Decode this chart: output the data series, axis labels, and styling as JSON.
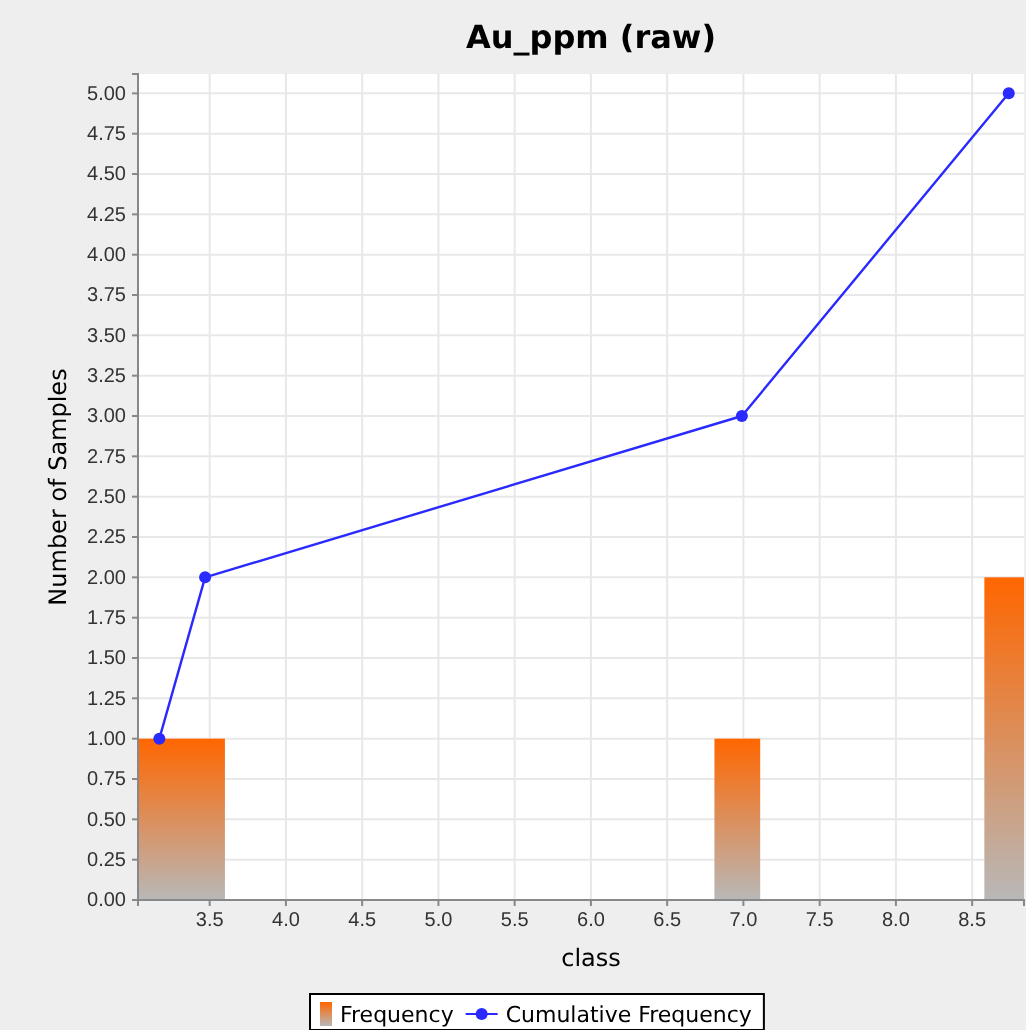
{
  "chart_data": {
    "type": "histogram",
    "title": "Au_ppm (raw)",
    "xlabel": "class",
    "ylabel": "Number of Samples",
    "bins": [
      3.03,
      3.6,
      6.81,
      7.11,
      8.58,
      8.84
    ],
    "series": [
      {
        "name": "Frequency",
        "color": "#ff6600",
        "values": [
          1,
          0,
          1,
          0,
          2
        ]
      },
      {
        "name": "Cumulative Frequency",
        "type": "line",
        "color": "#2a2aff",
        "x": [
          3.17,
          3.47,
          6.99,
          8.74
        ],
        "values": [
          1,
          2,
          3,
          5
        ]
      }
    ],
    "xlim": [
      3.03,
      8.84
    ],
    "xticks": [
      3.5,
      {
        "value": 4,
        "label": "4.0"
      },
      4.5,
      {
        "value": 5,
        "label": "5.0"
      },
      5.5,
      {
        "value": 6,
        "label": "6.0"
      },
      6.5,
      {
        "value": 7,
        "label": "7.0"
      },
      7.5,
      {
        "value": 8,
        "label": "8.0"
      },
      8.5
    ],
    "ylim": [
      0,
      5.12
    ],
    "yticks": [
      {
        "value": 0,
        "label": "0.00"
      },
      {
        "value": 0.25,
        "label": "0.25"
      },
      {
        "value": 0.5,
        "label": "0.50"
      },
      {
        "value": 0.75,
        "label": "0.75"
      },
      {
        "value": 1,
        "label": "1.00"
      },
      {
        "value": 1.25,
        "label": "1.25"
      },
      {
        "value": 1.5,
        "label": "1.50"
      },
      {
        "value": 1.75,
        "label": "1.75"
      },
      {
        "value": 2,
        "label": "2.00"
      },
      {
        "value": 2.25,
        "label": "2.25"
      },
      {
        "value": 2.5,
        "label": "2.50"
      },
      {
        "value": 2.75,
        "label": "2.75"
      },
      {
        "value": 3,
        "label": "3.00"
      },
      {
        "value": 3.25,
        "label": "3.25"
      },
      {
        "value": 3.5,
        "label": "3.50"
      },
      {
        "value": 3.75,
        "label": "3.75"
      },
      {
        "value": 4,
        "label": "4.00"
      },
      {
        "value": 4.25,
        "label": "4.25"
      },
      {
        "value": 4.5,
        "label": "4.50"
      },
      {
        "value": 4.75,
        "label": "4.75"
      },
      {
        "value": 5,
        "label": "5.00"
      }
    ],
    "grid": true,
    "legend": "bottom",
    "marker": "circle",
    "line_style": "solid"
  }
}
